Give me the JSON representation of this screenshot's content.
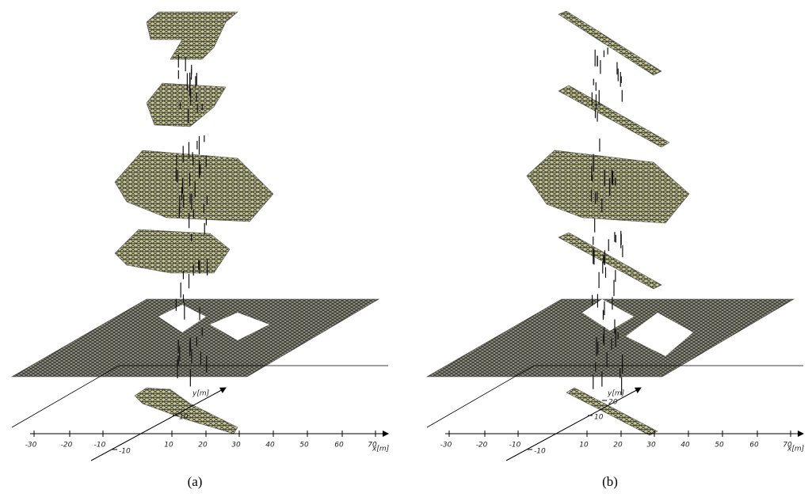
{
  "panels": [
    {
      "caption": "(a)",
      "x_ticks": [
        "-30",
        "-20",
        "-10",
        "10",
        "20",
        "30",
        "40",
        "50",
        "60",
        "70"
      ],
      "x_label": "x[m]",
      "y_label": "y[m]",
      "y_ticks": [
        "10",
        "-10"
      ]
    },
    {
      "caption": "(b)",
      "x_ticks": [
        "-30",
        "-20",
        "-10",
        "10",
        "20",
        "30",
        "40",
        "50",
        "60",
        "70"
      ],
      "x_label": "x[m]",
      "y_label": "y[m]",
      "y_ticks": [
        "10",
        "20",
        "-10"
      ]
    }
  ]
}
